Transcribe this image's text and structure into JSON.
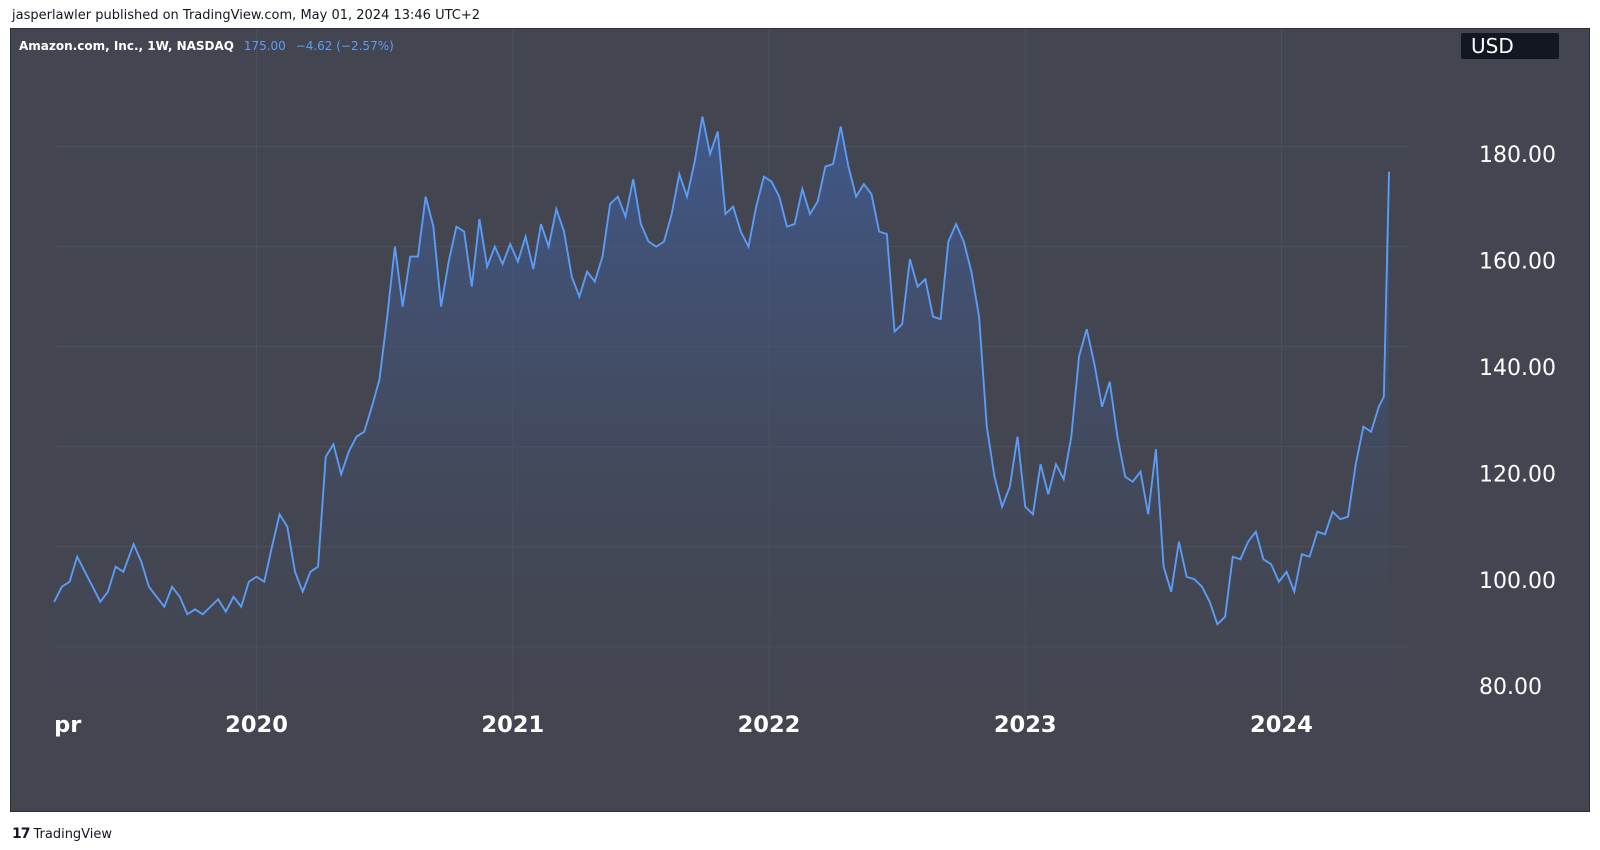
{
  "header": {
    "publisher_text": "jasperlawler published on TradingView.com, May 01, 2024 13:46 UTC+2"
  },
  "legend": {
    "symbol_text": "Amazon.com, Inc., 1W, NASDAQ",
    "last_price": "175.00",
    "change": "−4.62 (−2.57%)"
  },
  "currency": "USD",
  "footer": {
    "brand": "TradingView",
    "logo_text": "17"
  },
  "colors": {
    "background": "#434651",
    "line": "#5b9cf6",
    "grid": "#4e525d",
    "text": "#ffffff"
  },
  "chart_data": {
    "type": "area",
    "title": "",
    "xlabel": "",
    "ylabel": "",
    "x_tick_labels": [
      "pr",
      "2020",
      "2021",
      "2022",
      "2023",
      "2024"
    ],
    "x_tick_times": [
      2019.21,
      2020.0,
      2021.0,
      2022.0,
      2023.0,
      2024.0
    ],
    "y_tick_labels": [
      "80.00",
      "100.00",
      "120.00",
      "140.00",
      "160.00",
      "180.00"
    ],
    "y_ticks": [
      80,
      100,
      120,
      140,
      160,
      180
    ],
    "ylim": [
      65,
      203.5
    ],
    "xlim": [
      2019.21,
      2024.42
    ],
    "grid": true,
    "legend": "top-left",
    "series": [
      {
        "points": [
          [
            2019.21,
            89
          ],
          [
            2019.24,
            92
          ],
          [
            2019.27,
            93
          ],
          [
            2019.3,
            98
          ],
          [
            2019.33,
            95
          ],
          [
            2019.36,
            92
          ],
          [
            2019.39,
            89
          ],
          [
            2019.42,
            91
          ],
          [
            2019.45,
            96
          ],
          [
            2019.48,
            95
          ],
          [
            2019.52,
            100.5
          ],
          [
            2019.55,
            97
          ],
          [
            2019.58,
            92
          ],
          [
            2019.61,
            90
          ],
          [
            2019.64,
            88
          ],
          [
            2019.67,
            92
          ],
          [
            2019.7,
            90
          ],
          [
            2019.73,
            86.5
          ],
          [
            2019.76,
            87.5
          ],
          [
            2019.79,
            86.5
          ],
          [
            2019.82,
            88
          ],
          [
            2019.85,
            89.5
          ],
          [
            2019.88,
            87
          ],
          [
            2019.91,
            90
          ],
          [
            2019.94,
            88
          ],
          [
            2019.97,
            93
          ],
          [
            2020.0,
            94
          ],
          [
            2020.03,
            93
          ],
          [
            2020.06,
            100
          ],
          [
            2020.09,
            106.5
          ],
          [
            2020.12,
            104
          ],
          [
            2020.15,
            95
          ],
          [
            2020.18,
            91
          ],
          [
            2020.21,
            95
          ],
          [
            2020.24,
            96
          ],
          [
            2020.27,
            118
          ],
          [
            2020.3,
            120.5
          ],
          [
            2020.33,
            114.5
          ],
          [
            2020.36,
            119
          ],
          [
            2020.39,
            122
          ],
          [
            2020.42,
            123
          ],
          [
            2020.45,
            128
          ],
          [
            2020.48,
            133.5
          ],
          [
            2020.51,
            146
          ],
          [
            2020.54,
            160
          ],
          [
            2020.57,
            148
          ],
          [
            2020.6,
            158
          ],
          [
            2020.63,
            158
          ],
          [
            2020.66,
            170
          ],
          [
            2020.69,
            164
          ],
          [
            2020.72,
            148
          ],
          [
            2020.75,
            157
          ],
          [
            2020.78,
            164
          ],
          [
            2020.81,
            163
          ],
          [
            2020.84,
            152
          ],
          [
            2020.87,
            165.5
          ],
          [
            2020.9,
            156
          ],
          [
            2020.93,
            160
          ],
          [
            2020.96,
            156.5
          ],
          [
            2020.99,
            160.5
          ],
          [
            2021.02,
            157
          ],
          [
            2021.05,
            162
          ],
          [
            2021.08,
            155.5
          ],
          [
            2021.11,
            164.5
          ],
          [
            2021.14,
            160
          ],
          [
            2021.17,
            167.5
          ],
          [
            2021.2,
            163
          ],
          [
            2021.23,
            154
          ],
          [
            2021.26,
            150
          ],
          [
            2021.29,
            155
          ],
          [
            2021.32,
            153
          ],
          [
            2021.35,
            158
          ],
          [
            2021.38,
            168.5
          ],
          [
            2021.41,
            170
          ],
          [
            2021.44,
            166
          ],
          [
            2021.47,
            173.5
          ],
          [
            2021.5,
            164.5
          ],
          [
            2021.53,
            161
          ],
          [
            2021.56,
            160
          ],
          [
            2021.59,
            161
          ],
          [
            2021.62,
            166.5
          ],
          [
            2021.65,
            174.5
          ],
          [
            2021.68,
            170
          ],
          [
            2021.71,
            177
          ],
          [
            2021.74,
            186
          ],
          [
            2021.77,
            178.5
          ],
          [
            2021.8,
            183
          ],
          [
            2021.83,
            166.5
          ],
          [
            2021.86,
            168
          ],
          [
            2021.89,
            163
          ],
          [
            2021.92,
            160
          ],
          [
            2021.95,
            168
          ],
          [
            2021.98,
            174
          ],
          [
            2022.01,
            173
          ],
          [
            2022.04,
            170
          ],
          [
            2022.07,
            164
          ],
          [
            2022.1,
            164.5
          ],
          [
            2022.13,
            171.5
          ],
          [
            2022.16,
            166.5
          ],
          [
            2022.19,
            169
          ],
          [
            2022.22,
            176
          ],
          [
            2022.25,
            176.5
          ],
          [
            2022.28,
            184
          ],
          [
            2022.31,
            176
          ],
          [
            2022.34,
            170
          ],
          [
            2022.37,
            172.5
          ],
          [
            2022.4,
            170.5
          ],
          [
            2022.43,
            163
          ],
          [
            2022.46,
            162.5
          ],
          [
            2022.49,
            143
          ],
          [
            2022.52,
            144.5
          ],
          [
            2022.55,
            157.5
          ],
          [
            2022.58,
            152
          ],
          [
            2022.61,
            153.5
          ],
          [
            2022.64,
            146
          ],
          [
            2022.67,
            145.5
          ],
          [
            2022.7,
            161
          ],
          [
            2022.73,
            164.5
          ],
          [
            2022.76,
            161
          ],
          [
            2022.79,
            155
          ],
          [
            2022.82,
            146
          ],
          [
            2022.85,
            124
          ],
          [
            2022.88,
            114
          ],
          [
            2022.91,
            108
          ],
          [
            2022.94,
            112
          ],
          [
            2022.97,
            122
          ],
          [
            2023.0,
            108
          ],
          [
            2023.03,
            106.5
          ],
          [
            2023.06,
            116.5
          ],
          [
            2023.09,
            110.5
          ],
          [
            2023.12,
            116.5
          ],
          [
            2023.15,
            113.5
          ],
          [
            2023.18,
            122
          ],
          [
            2023.21,
            138
          ],
          [
            2023.24,
            143.5
          ],
          [
            2023.27,
            136.5
          ],
          [
            2023.3,
            128
          ],
          [
            2023.33,
            133
          ],
          [
            2023.36,
            122
          ],
          [
            2023.39,
            114
          ],
          [
            2023.42,
            113
          ],
          [
            2023.45,
            115
          ],
          [
            2023.48,
            106.5
          ],
          [
            2023.51,
            119.5
          ],
          [
            2023.54,
            96
          ],
          [
            2023.57,
            91
          ],
          [
            2023.6,
            101
          ],
          [
            2023.63,
            94
          ],
          [
            2023.66,
            93.5
          ],
          [
            2023.69,
            92
          ],
          [
            2023.72,
            89
          ],
          [
            2023.75,
            84.5
          ],
          [
            2023.78,
            86
          ],
          [
            2023.81,
            98
          ],
          [
            2023.84,
            97.5
          ],
          [
            2023.87,
            101
          ],
          [
            2023.9,
            103
          ],
          [
            2023.93,
            97.5
          ],
          [
            2023.96,
            96.5
          ],
          [
            2023.99,
            93
          ],
          [
            2024.02,
            95
          ],
          [
            2024.05,
            91
          ],
          [
            2024.08,
            98.5
          ],
          [
            2024.11,
            98
          ],
          [
            2024.14,
            103
          ],
          [
            2024.17,
            102.5
          ],
          [
            2024.2,
            107
          ],
          [
            2024.23,
            105.5
          ],
          [
            2024.26,
            106
          ],
          [
            2024.29,
            116.5
          ],
          [
            2024.32,
            124
          ],
          [
            2024.35,
            123
          ],
          [
            2024.38,
            128
          ],
          [
            2024.4,
            130
          ],
          [
            2024.42,
            175
          ]
        ]
      }
    ]
  }
}
